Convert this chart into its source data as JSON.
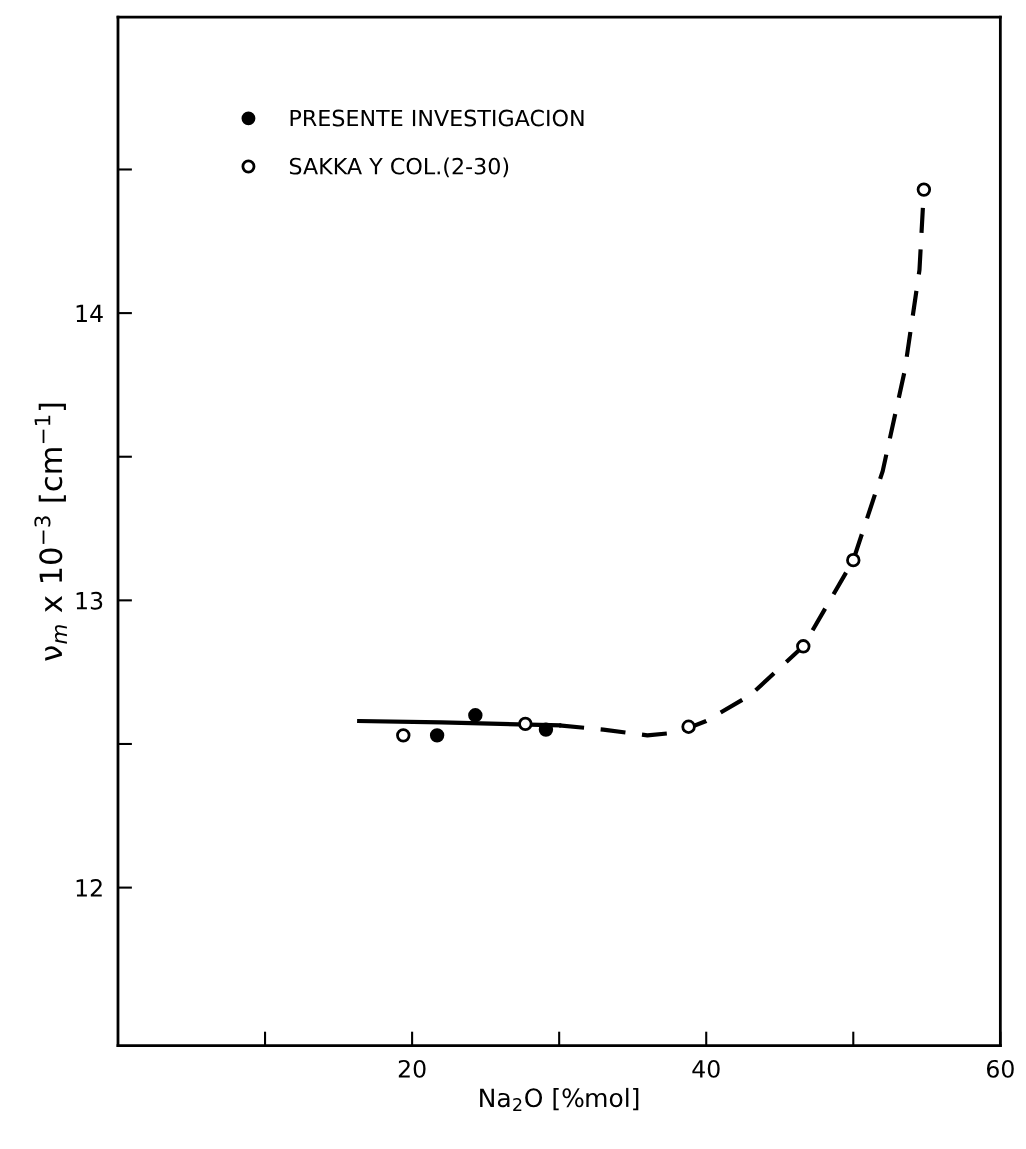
{
  "chart_data": {
    "type": "scatter",
    "xlabel": "Na$_{2}$O [%mol]",
    "ylabel": "ν$_{m}$ x 10$^{−3}$ [cm$^{−1}$]",
    "xlim": [
      0,
      60
    ],
    "ylim": [
      11.45,
      15.03
    ],
    "xticks": [
      {
        "value": 10,
        "label": null
      },
      20,
      {
        "value": 30,
        "label": null
      },
      40,
      {
        "value": 50,
        "label": null
      },
      60
    ],
    "yticks": [
      12,
      {
        "value": 12.5,
        "label": null
      },
      13,
      {
        "value": 13.5,
        "label": null
      },
      14,
      {
        "value": 14.5,
        "label": null
      }
    ],
    "grid": false,
    "legend": "top left",
    "series": [
      {
        "name": "PRESENTE INVESTIGACION",
        "marker": "circle",
        "color": "#000000",
        "x": [
          21.7,
          24.3,
          29.1
        ],
        "values": [
          12.53,
          12.6,
          12.55
        ]
      },
      {
        "name": "SAKKA Y COL.(2-30)",
        "marker": "circle",
        "color": "#ffffff",
        "x": [
          19.4,
          27.7,
          38.8,
          46.6,
          50.0,
          54.8
        ],
        "values": [
          12.53,
          12.57,
          12.56,
          12.84,
          13.14,
          14.43
        ]
      },
      {
        "type": "line",
        "marker": "none",
        "line_style": "solid",
        "color": "#000000",
        "x": [
          16.4,
          22,
          26,
          30
        ],
        "values": [
          12.58,
          12.575,
          12.57,
          12.565
        ]
      },
      {
        "type": "line",
        "marker": "none",
        "line_style": "dashed",
        "color": "#000000",
        "x": [
          30,
          33,
          36,
          38,
          40,
          43,
          46.6,
          50,
          52,
          53.5,
          54.5,
          54.8
        ],
        "values": [
          12.565,
          12.55,
          12.53,
          12.54,
          12.58,
          12.67,
          12.84,
          13.14,
          13.45,
          13.8,
          14.15,
          14.43
        ]
      }
    ]
  }
}
